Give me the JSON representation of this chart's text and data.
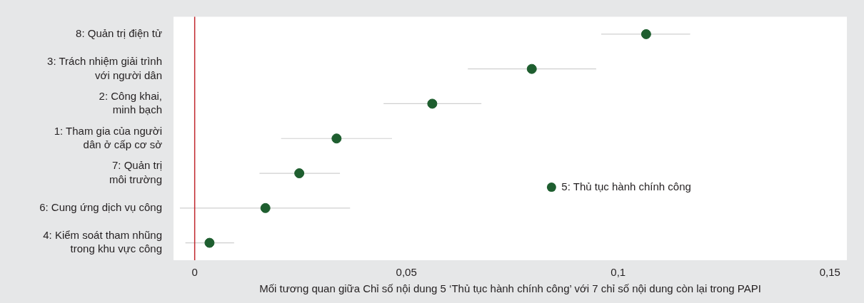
{
  "chart_data": {
    "type": "scatter",
    "orientation": "horizontal",
    "categories": [
      "8: Quản trị điện tử",
      "3: Trách nhiệm giải trình\nvới người dân",
      "2: Công khai,\nminh bạch",
      "1: Tham gia của người\ndân ở cấp cơ sở",
      "7: Quản trị\nmôi trường",
      "6: Cung ứng dịch vụ công",
      "4: Kiểm soát tham nhũng\ntrong khu vực công"
    ],
    "series": [
      {
        "name": "5: Thủ tục hành chính công",
        "color": "#1e5e2f",
        "values": [
          0.1066,
          0.0796,
          0.0561,
          0.0335,
          0.0247,
          0.0167,
          0.0035
        ],
        "errors": [
          [
            0.096,
            0.117
          ],
          [
            0.0645,
            0.0948
          ],
          [
            0.0446,
            0.0677
          ],
          [
            0.0204,
            0.0466
          ],
          [
            0.0153,
            0.0343
          ],
          [
            -0.0035,
            0.0367
          ],
          [
            -0.0022,
            0.0093
          ]
        ]
      }
    ],
    "xlabel": "Mối tương quan giữa Chỉ số nội dung 5 ‘Thủ tục hành chính công’ với 7 chỉ số nội dung còn lại trong PAPI",
    "xlim": [
      -0.005,
      0.154
    ],
    "xticks": [
      0,
      {
        "value": 0.05,
        "label": "0,05"
      },
      {
        "value": 0.1,
        "label": "0,1"
      },
      {
        "value": 0.15,
        "label": "0,15"
      }
    ],
    "ref_lines": [
      {
        "axis": "x",
        "value": 0,
        "color": "#c0272d"
      }
    ],
    "marker": "circle",
    "legend": "right",
    "grid": false
  }
}
